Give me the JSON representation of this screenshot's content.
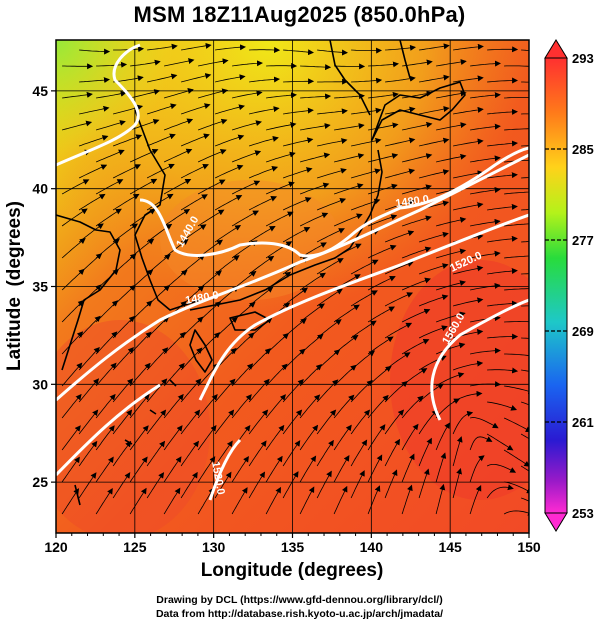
{
  "title": "MSM 18Z11Aug2025 (850.0hPa)",
  "map": {
    "lon_range": [
      120,
      150
    ],
    "lat_range": [
      22.4,
      47.6
    ],
    "x_ticks": [
      "120",
      "125",
      "130",
      "135",
      "140",
      "145",
      "150"
    ],
    "y_ticks": [
      "25",
      "30",
      "35",
      "40",
      "45"
    ],
    "xlabel": "Longitude (degrees)",
    "ylabel": "Latitude  (degrees)",
    "contour_labels": [
      "1480.0",
      "1440.0",
      "1480.0",
      "1520.0",
      "1560.0",
      "1520.0"
    ]
  },
  "colorbar": {
    "ticks": [
      "293",
      "285",
      "277",
      "269",
      "261",
      "253"
    ],
    "colors": [
      "#ff3030",
      "#ff7a1a",
      "#ffd21a",
      "#b4f21a",
      "#28dc3c",
      "#1ec8c8",
      "#1a64f0",
      "#2a1ad2",
      "#9a1ac8",
      "#ff2ad2"
    ]
  },
  "credits": {
    "line1": "Drawing by DCL (https://www.gfd-dennou.org/library/dcl/)",
    "line2": "Data from http://database.rish.kyoto-u.ac.jp/arch/jmadata/"
  }
}
